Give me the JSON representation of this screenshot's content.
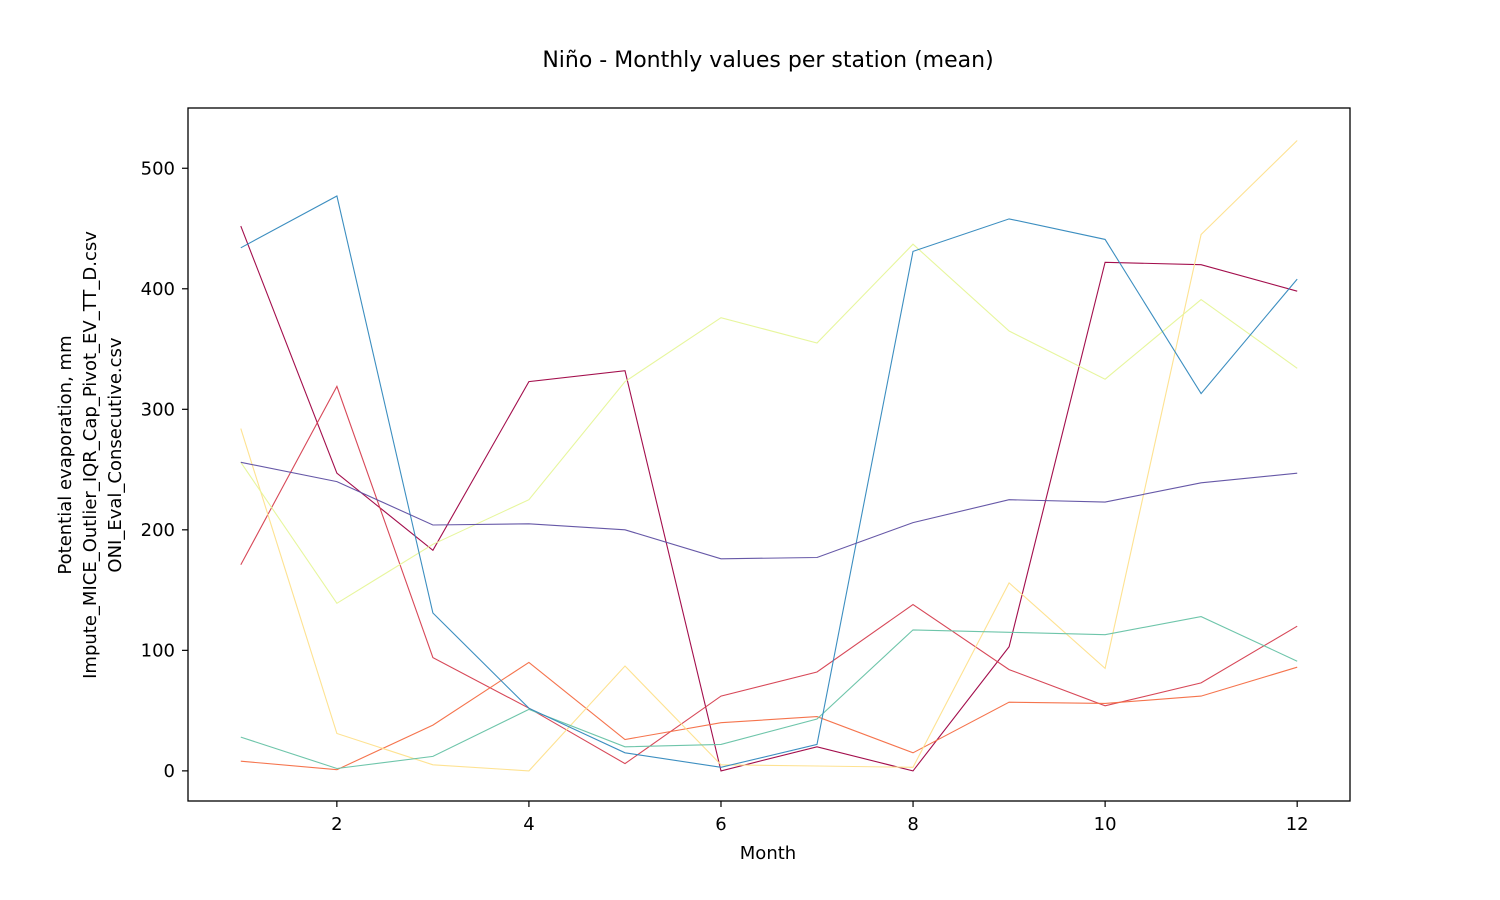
{
  "chart_data": {
    "type": "line",
    "title": "Niño - Monthly values per station (mean)",
    "xlabel": "Month",
    "ylabel_lines": [
      "Potential evaporation, mm",
      "Impute_MICE_Outlier_IQR_Cap_Pivot_EV_TT_D.csv",
      "ONI_Eval_Consecutive.csv"
    ],
    "xlim": [
      0.45,
      12.55
    ],
    "ylim": [
      -25,
      550
    ],
    "xticks": [
      2,
      4,
      6,
      8,
      10,
      12
    ],
    "yticks": [
      0,
      100,
      200,
      300,
      400,
      500
    ],
    "grid": false,
    "legend": "none",
    "x": [
      1,
      2,
      3,
      4,
      5,
      6,
      7,
      8,
      9,
      10,
      11,
      12
    ],
    "series": [
      {
        "color": "#9e0142",
        "values": [
          452,
          247,
          183,
          323,
          332,
          0,
          20,
          0,
          103,
          422,
          420,
          398
        ]
      },
      {
        "color": "#d53e4f",
        "values": [
          171,
          319,
          94,
          52,
          6,
          62,
          82,
          138,
          84,
          54,
          73,
          120
        ]
      },
      {
        "color": "#f46d43",
        "values": [
          8,
          1,
          38,
          90,
          26,
          40,
          45,
          15,
          57,
          56,
          62,
          86
        ]
      },
      {
        "color": "#fee08b",
        "values": [
          284,
          31,
          5,
          0,
          87,
          5,
          4,
          3,
          156,
          85,
          445,
          523
        ]
      },
      {
        "color": "#e6f598",
        "values": [
          256,
          139,
          188,
          225,
          323,
          376,
          355,
          437,
          365,
          325,
          391,
          334
        ]
      },
      {
        "color": "#66c2a5",
        "values": [
          28,
          2,
          12,
          51,
          20,
          22,
          43,
          117,
          115,
          113,
          128,
          91
        ]
      },
      {
        "color": "#3288bd",
        "values": [
          434,
          477,
          131,
          52,
          15,
          3,
          22,
          431,
          458,
          441,
          313,
          408
        ]
      },
      {
        "color": "#5e4fa2",
        "values": [
          256,
          240,
          204,
          205,
          200,
          176,
          177,
          206,
          225,
          223,
          239,
          247
        ]
      }
    ]
  }
}
